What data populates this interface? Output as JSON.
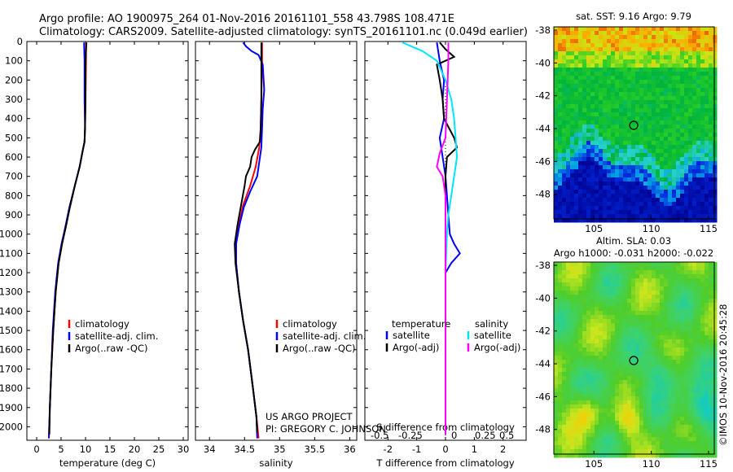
{
  "title_line1": "Argo profile: AO 1900975_264 01-Nov-2016 20161101_558 43.798S 108.471E",
  "title_line2": "Climatology: CARS2009. Satellite-adjusted climatology: synTS_20161101.nc (0.049d earlier)",
  "credit_line1": "US ARGO PROJECT",
  "credit_line2": "PI: GREGORY C. JOHNSON",
  "stamp": "©IMOS 10-Nov-2016 20:45:28",
  "colors": {
    "climatology": "#ff0000",
    "satellite": "#0000ff",
    "argo": "#000000",
    "salinity_sat": "#00e5ff",
    "salinity_argo": "#ff00ff"
  },
  "chart_data": [
    {
      "type": "line",
      "id": "temperature",
      "xlabel": "temperature (deg C)",
      "ylabel": "",
      "xlim": [
        -2,
        31
      ],
      "ylim": [
        2070,
        0
      ],
      "xticks": [
        "0",
        "5",
        "10",
        "15",
        "20",
        "25",
        "30"
      ],
      "yticks": [
        "0",
        "100",
        "200",
        "300",
        "400",
        "500",
        "600",
        "700",
        "800",
        "900",
        "1000",
        "1100",
        "1200",
        "1300",
        "1400",
        "1500",
        "1600",
        "1700",
        "1800",
        "1900",
        "2000"
      ],
      "legend": [
        "climatology",
        "satellite-adj. clim.",
        "Argo(..raw -QC)"
      ],
      "series": [
        {
          "name": "climatology",
          "color": "#ff0000",
          "points": [
            [
              10.1,
              5
            ],
            [
              10.1,
              100
            ],
            [
              10.0,
              300
            ],
            [
              9.9,
              450
            ],
            [
              9.8,
              520
            ],
            [
              9.4,
              570
            ],
            [
              8.8,
              650
            ],
            [
              7.8,
              750
            ],
            [
              6.8,
              860
            ],
            [
              5.9,
              960
            ],
            [
              5.2,
              1050
            ],
            [
              4.5,
              1150
            ],
            [
              3.9,
              1300
            ],
            [
              3.4,
              1500
            ],
            [
              3.0,
              1700
            ],
            [
              2.7,
              1900
            ],
            [
              2.5,
              2060
            ]
          ]
        },
        {
          "name": "satellite-adj. clim.",
          "color": "#0000ff",
          "points": [
            [
              9.7,
              5
            ],
            [
              9.8,
              100
            ],
            [
              9.8,
              300
            ],
            [
              9.9,
              450
            ],
            [
              9.8,
              520
            ],
            [
              9.4,
              570
            ],
            [
              8.8,
              650
            ],
            [
              7.8,
              750
            ],
            [
              6.7,
              860
            ],
            [
              5.9,
              960
            ],
            [
              5.1,
              1050
            ],
            [
              4.4,
              1150
            ],
            [
              3.8,
              1300
            ],
            [
              3.3,
              1500
            ],
            [
              3.0,
              1700
            ],
            [
              2.7,
              1900
            ],
            [
              2.5,
              2060
            ]
          ]
        },
        {
          "name": "Argo(..raw -QC)",
          "color": "#000000",
          "points": [
            [
              10.2,
              5
            ],
            [
              10.1,
              50
            ],
            [
              10.0,
              100
            ],
            [
              10.0,
              300
            ],
            [
              9.9,
              450
            ],
            [
              9.8,
              520
            ],
            [
              9.4,
              570
            ],
            [
              8.8,
              650
            ],
            [
              7.8,
              750
            ],
            [
              6.8,
              860
            ],
            [
              6.0,
              960
            ],
            [
              5.2,
              1050
            ],
            [
              4.5,
              1150
            ],
            [
              3.9,
              1300
            ],
            [
              3.4,
              1500
            ],
            [
              3.0,
              1700
            ],
            [
              2.7,
              1900
            ],
            [
              2.6,
              2040
            ]
          ]
        }
      ]
    },
    {
      "type": "line",
      "id": "salinity",
      "xlabel": "salinity",
      "ylabel": "",
      "xlim": [
        33.8,
        36.1
      ],
      "ylim": [
        2070,
        0
      ],
      "xticks": [
        "34",
        "34.5",
        "35",
        "35.5",
        "36"
      ],
      "legend": [
        "climatology",
        "satellite-adj. clim.",
        "Argo(..raw -QC)"
      ],
      "series": [
        {
          "name": "climatology",
          "color": "#ff0000",
          "points": [
            [
              34.75,
              5
            ],
            [
              34.75,
              100
            ],
            [
              34.74,
              300
            ],
            [
              34.73,
              450
            ],
            [
              34.71,
              550
            ],
            [
              34.66,
              650
            ],
            [
              34.58,
              750
            ],
            [
              34.48,
              850
            ],
            [
              34.42,
              950
            ],
            [
              34.38,
              1050
            ],
            [
              34.38,
              1150
            ],
            [
              34.42,
              1300
            ],
            [
              34.48,
              1450
            ],
            [
              34.55,
              1600
            ],
            [
              34.62,
              1800
            ],
            [
              34.67,
              1950
            ],
            [
              34.7,
              2060
            ]
          ]
        },
        {
          "name": "satellite-adj. clim.",
          "color": "#0000ff",
          "points": [
            [
              34.48,
              5
            ],
            [
              34.52,
              25
            ],
            [
              34.6,
              50
            ],
            [
              34.7,
              70
            ],
            [
              34.76,
              120
            ],
            [
              34.78,
              250
            ],
            [
              34.76,
              350
            ],
            [
              34.75,
              450
            ],
            [
              34.74,
              550
            ],
            [
              34.72,
              600
            ],
            [
              34.68,
              700
            ],
            [
              34.58,
              780
            ],
            [
              34.49,
              860
            ],
            [
              34.43,
              950
            ],
            [
              34.38,
              1050
            ],
            [
              34.38,
              1150
            ],
            [
              34.42,
              1300
            ],
            [
              34.48,
              1450
            ],
            [
              34.55,
              1600
            ],
            [
              34.62,
              1800
            ],
            [
              34.67,
              1950
            ],
            [
              34.68,
              2060
            ]
          ]
        },
        {
          "name": "Argo(..raw -QC)",
          "color": "#000000",
          "points": [
            [
              34.74,
              5
            ],
            [
              34.74,
              100
            ],
            [
              34.74,
              300
            ],
            [
              34.73,
              450
            ],
            [
              34.72,
              520
            ],
            [
              34.65,
              560
            ],
            [
              34.6,
              600
            ],
            [
              34.58,
              650
            ],
            [
              34.52,
              700
            ],
            [
              34.5,
              750
            ],
            [
              34.45,
              850
            ],
            [
              34.4,
              950
            ],
            [
              34.36,
              1050
            ],
            [
              34.37,
              1150
            ],
            [
              34.42,
              1300
            ],
            [
              34.48,
              1450
            ],
            [
              34.55,
              1600
            ],
            [
              34.62,
              1800
            ],
            [
              34.67,
              1950
            ],
            [
              34.68,
              2030
            ]
          ]
        }
      ]
    },
    {
      "type": "line",
      "id": "differences",
      "xlabel": "T difference from climatology",
      "xlabel_top": "S difference from climatology",
      "xlim": [
        -2.8,
        2.8
      ],
      "ylim": [
        2070,
        0
      ],
      "xticks": [
        "-2",
        "-1",
        "0",
        "1",
        "2"
      ],
      "xticks_s": [
        "-0.5",
        "-0.25",
        "0",
        "0.25",
        "0.5"
      ],
      "legend_headers": [
        "temperature",
        "salinity"
      ],
      "legend": [
        "satellite",
        "Argo(-adj)",
        "satellite",
        "Argo(-adj)"
      ],
      "series": [
        {
          "name": "T satellite",
          "color": "#0000ff",
          "points": [
            [
              -0.3,
              5
            ],
            [
              -0.2,
              100
            ],
            [
              -0.05,
              200
            ],
            [
              -0.1,
              300
            ],
            [
              -0.05,
              400
            ],
            [
              -0.2,
              500
            ],
            [
              -0.1,
              600
            ],
            [
              0.0,
              700
            ],
            [
              0.05,
              800
            ],
            [
              0.1,
              900
            ],
            [
              0.15,
              1000
            ],
            [
              0.3,
              1050
            ],
            [
              0.5,
              1100
            ],
            [
              0.2,
              1150
            ],
            [
              0.0,
              1200
            ],
            [
              0.0,
              1500
            ],
            [
              0.0,
              2040
            ]
          ]
        },
        {
          "name": "T Argo(-adj)",
          "color": "#000000",
          "points": [
            [
              -0.2,
              5
            ],
            [
              0.0,
              40
            ],
            [
              0.3,
              80
            ],
            [
              -0.3,
              120
            ],
            [
              -0.2,
              200
            ],
            [
              -0.1,
              300
            ],
            [
              -0.05,
              400
            ],
            [
              0.3,
              500
            ],
            [
              0.4,
              550
            ],
            [
              0.05,
              600
            ],
            [
              0.0,
              700
            ],
            [
              0.0,
              2000
            ]
          ]
        },
        {
          "name": "S satellite",
          "color": "#00e5ff",
          "points": [
            [
              -1.5,
              5
            ],
            [
              -0.8,
              50
            ],
            [
              -0.3,
              100
            ],
            [
              0.0,
              200
            ],
            [
              0.2,
              300
            ],
            [
              0.3,
              400
            ],
            [
              0.35,
              500
            ],
            [
              0.4,
              600
            ],
            [
              0.3,
              700
            ],
            [
              0.2,
              800
            ],
            [
              0.1,
              900
            ],
            [
              0.05,
              1000
            ],
            [
              0.0,
              1200
            ],
            [
              0.0,
              1500
            ],
            [
              0.0,
              2040
            ]
          ]
        },
        {
          "name": "S Argo(-adj)",
          "color": "#ff00ff",
          "points": [
            [
              0.1,
              5
            ],
            [
              0.1,
              100
            ],
            [
              0.05,
              300
            ],
            [
              0.0,
              500
            ],
            [
              -0.2,
              580
            ],
            [
              -0.3,
              650
            ],
            [
              -0.1,
              700
            ],
            [
              0.0,
              800
            ],
            [
              0.0,
              2040
            ]
          ]
        }
      ]
    },
    {
      "type": "heatmap",
      "id": "sst_map",
      "title": "sat. SST: 9.16 Argo: 9.79",
      "xlim": [
        101.5,
        115.5
      ],
      "ylim": [
        -49.5,
        -37.8
      ],
      "xticks": [
        "105",
        "110",
        "115"
      ],
      "yticks": [
        "-38",
        "-40",
        "-42",
        "-44",
        "-46",
        "-48"
      ],
      "marker": [
        108.471,
        -43.798
      ]
    },
    {
      "type": "heatmap",
      "id": "sla_map",
      "title": "Altim. SLA: 0.03",
      "subtitle": "Argo h1000: -0.031 h2000: -0.022",
      "xlim": [
        101.5,
        115.5
      ],
      "ylim": [
        -49.5,
        -37.8
      ],
      "xticks": [
        "105",
        "110",
        "115"
      ],
      "yticks": [
        "-38",
        "-40",
        "-42",
        "-44",
        "-46",
        "-48"
      ],
      "marker": [
        108.471,
        -43.798
      ]
    }
  ]
}
